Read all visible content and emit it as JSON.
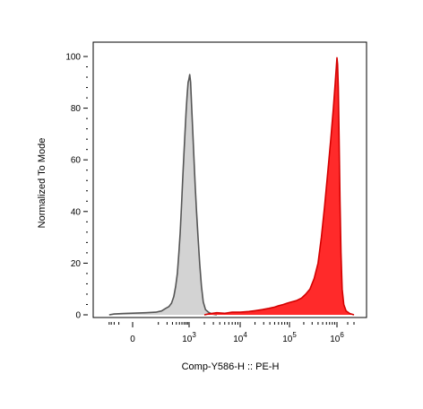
{
  "chart_data": {
    "type": "area",
    "title": "",
    "xlabel": "Comp-Y586-H :: PE-H",
    "ylabel": "Normalized To Mode",
    "ylim": [
      0,
      100
    ],
    "y_ticks": [
      {
        "value": 0,
        "label": "0"
      },
      {
        "value": 20,
        "label": "20"
      },
      {
        "value": 40,
        "label": "40"
      },
      {
        "value": 60,
        "label": "60"
      },
      {
        "value": 80,
        "label": "80"
      },
      {
        "value": 100,
        "label": "100"
      }
    ],
    "x_scale": "biexponential",
    "x_ticks": [
      {
        "value": 0,
        "base": "0",
        "exp": ""
      },
      {
        "value": 1000,
        "base": "10",
        "exp": "3"
      },
      {
        "value": 10000,
        "base": "10",
        "exp": "4"
      },
      {
        "value": 100000,
        "base": "10",
        "exp": "5"
      },
      {
        "value": 1000000,
        "base": "10",
        "exp": "6"
      }
    ],
    "grid": false,
    "legend": "none",
    "series": [
      {
        "fill": "#d3d3d3",
        "stroke": "#555555",
        "points": [
          [
            -400,
            0.0
          ],
          [
            -200,
            0.3
          ],
          [
            -50,
            0.5
          ],
          [
            30,
            0.8
          ],
          [
            80,
            1.0
          ],
          [
            130,
            1.5
          ],
          [
            180,
            2.5
          ],
          [
            230,
            3.2
          ],
          [
            280,
            4.5
          ],
          [
            330,
            7
          ],
          [
            380,
            11
          ],
          [
            430,
            16
          ],
          [
            480,
            24
          ],
          [
            530,
            32
          ],
          [
            580,
            42
          ],
          [
            630,
            52
          ],
          [
            690,
            62
          ],
          [
            750,
            71
          ],
          [
            810,
            79
          ],
          [
            870,
            85
          ],
          [
            930,
            90
          ],
          [
            980,
            91
          ],
          [
            1030,
            93
          ],
          [
            1070,
            90
          ],
          [
            1120,
            81
          ],
          [
            1180,
            71
          ],
          [
            1250,
            60
          ],
          [
            1320,
            50
          ],
          [
            1400,
            40
          ],
          [
            1500,
            30
          ],
          [
            1620,
            20
          ],
          [
            1750,
            11
          ],
          [
            1900,
            5
          ],
          [
            2100,
            2
          ],
          [
            2400,
            1
          ],
          [
            2800,
            0.3
          ],
          [
            3500,
            0
          ]
        ]
      },
      {
        "fill": "#ff2a2a",
        "stroke": "#d40000",
        "points": [
          [
            2000,
            0
          ],
          [
            2500,
            0.4
          ],
          [
            3500,
            0.8
          ],
          [
            5000,
            0.6
          ],
          [
            7000,
            1.0
          ],
          [
            10000,
            1.0
          ],
          [
            15000,
            1.3
          ],
          [
            20000,
            1.6
          ],
          [
            28000,
            2.0
          ],
          [
            38000,
            2.5
          ],
          [
            50000,
            3.0
          ],
          [
            60000,
            3.5
          ],
          [
            75000,
            4.0
          ],
          [
            90000,
            4.5
          ],
          [
            110000,
            5.0
          ],
          [
            140000,
            5.5
          ],
          [
            180000,
            6.5
          ],
          [
            220000,
            8
          ],
          [
            270000,
            10
          ],
          [
            330000,
            14
          ],
          [
            400000,
            20
          ],
          [
            470000,
            30
          ],
          [
            550000,
            42
          ],
          [
            640000,
            55
          ],
          [
            740000,
            68
          ],
          [
            840000,
            80
          ],
          [
            920000,
            90
          ],
          [
            970000,
            96
          ],
          [
            1000000,
            99.5
          ],
          [
            1040000,
            97
          ],
          [
            1090000,
            88
          ],
          [
            1150000,
            68
          ],
          [
            1220000,
            44
          ],
          [
            1300000,
            24
          ],
          [
            1400000,
            10
          ],
          [
            1550000,
            4
          ],
          [
            1800000,
            1.5
          ],
          [
            2300000,
            0.5
          ],
          [
            3000000,
            0
          ]
        ]
      }
    ]
  }
}
